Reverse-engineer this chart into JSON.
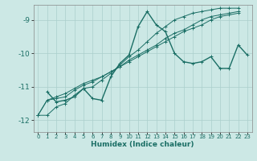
{
  "title": "",
  "xlabel": "Humidex (Indice chaleur)",
  "ylabel": "",
  "bg_color": "#cce8e5",
  "grid_color": "#aacfcc",
  "line_color": "#1a6e65",
  "xlim": [
    -0.5,
    23.5
  ],
  "ylim": [
    -12.35,
    -8.55
  ],
  "yticks": [
    -12,
    -11,
    -10,
    -9
  ],
  "xticks": [
    0,
    1,
    2,
    3,
    4,
    5,
    6,
    7,
    8,
    9,
    10,
    11,
    12,
    13,
    14,
    15,
    16,
    17,
    18,
    19,
    20,
    21,
    22,
    23
  ],
  "series": [
    [
      null,
      -11.15,
      -11.45,
      -11.4,
      -11.3,
      -11.05,
      -11.35,
      -11.4,
      -10.7,
      -10.3,
      -10.05,
      -9.2,
      -8.75,
      -9.15,
      -9.35,
      -10.0,
      -10.25,
      -10.3,
      -10.25,
      -10.1,
      -10.45,
      -10.45,
      -9.75,
      -10.05
    ],
    [
      -11.85,
      -11.85,
      -11.6,
      -11.5,
      -11.25,
      -11.05,
      -11.0,
      -10.8,
      -10.6,
      -10.35,
      -10.1,
      -9.9,
      -9.65,
      -9.4,
      -9.2,
      -9.0,
      -8.9,
      -8.8,
      -8.75,
      -8.7,
      -8.65,
      -8.65,
      -8.65,
      null
    ],
    [
      -11.85,
      -11.4,
      -11.35,
      -11.3,
      -11.1,
      -10.95,
      -10.85,
      -10.7,
      -10.55,
      -10.4,
      -10.2,
      -10.05,
      -9.9,
      -9.75,
      -9.55,
      -9.4,
      -9.3,
      -9.15,
      -9.0,
      -8.9,
      -8.85,
      -8.8,
      -8.75,
      null
    ],
    [
      -11.85,
      -11.4,
      -11.3,
      -11.2,
      -11.05,
      -10.9,
      -10.8,
      -10.7,
      -10.55,
      -10.4,
      -10.25,
      -10.1,
      -9.95,
      -9.8,
      -9.65,
      -9.5,
      -9.35,
      -9.25,
      -9.15,
      -9.0,
      -8.9,
      -8.85,
      -8.8,
      null
    ]
  ],
  "linewidths": [
    1.0,
    0.7,
    0.7,
    0.7
  ],
  "markersizes": [
    3.5,
    3.0,
    3.0,
    3.0
  ]
}
